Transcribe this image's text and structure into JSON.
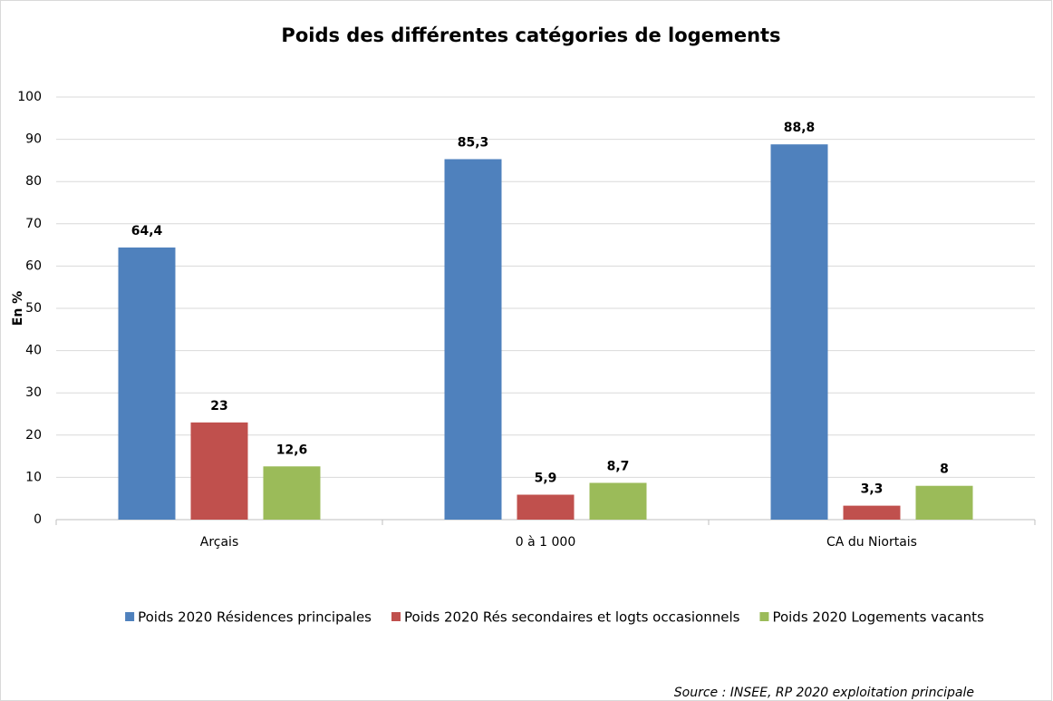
{
  "chart_data": {
    "type": "bar",
    "title": "Poids des différentes catégories de logements",
    "y_label": "En %",
    "source": "Source : INSEE, RP 2020 exploitation principale",
    "categories": [
      "Arçais",
      "0 à 1 000",
      "CA du Niortais"
    ],
    "series": [
      {
        "name": "Poids 2020 Résidences principales",
        "color": "#4f81bd",
        "values": [
          64.4,
          85.3,
          88.8
        ],
        "value_labels": [
          "64,4",
          "85,3",
          "88,8"
        ]
      },
      {
        "name": "Poids 2020 Rés secondaires et logts occasionnels",
        "color": "#c0504d",
        "values": [
          23,
          5.9,
          3.3
        ],
        "value_labels": [
          "23",
          "5,9",
          "3,3"
        ]
      },
      {
        "name": "Poids 2020 Logements vacants",
        "color": "#9bbb59",
        "values": [
          12.6,
          8.7,
          8
        ],
        "value_labels": [
          "12,6",
          "8,7",
          "8"
        ]
      }
    ],
    "ylim": [
      0,
      100
    ],
    "yticks": [
      0,
      10,
      20,
      30,
      40,
      50,
      60,
      70,
      80,
      90,
      100
    ],
    "grid": true,
    "legend": "bottom"
  }
}
